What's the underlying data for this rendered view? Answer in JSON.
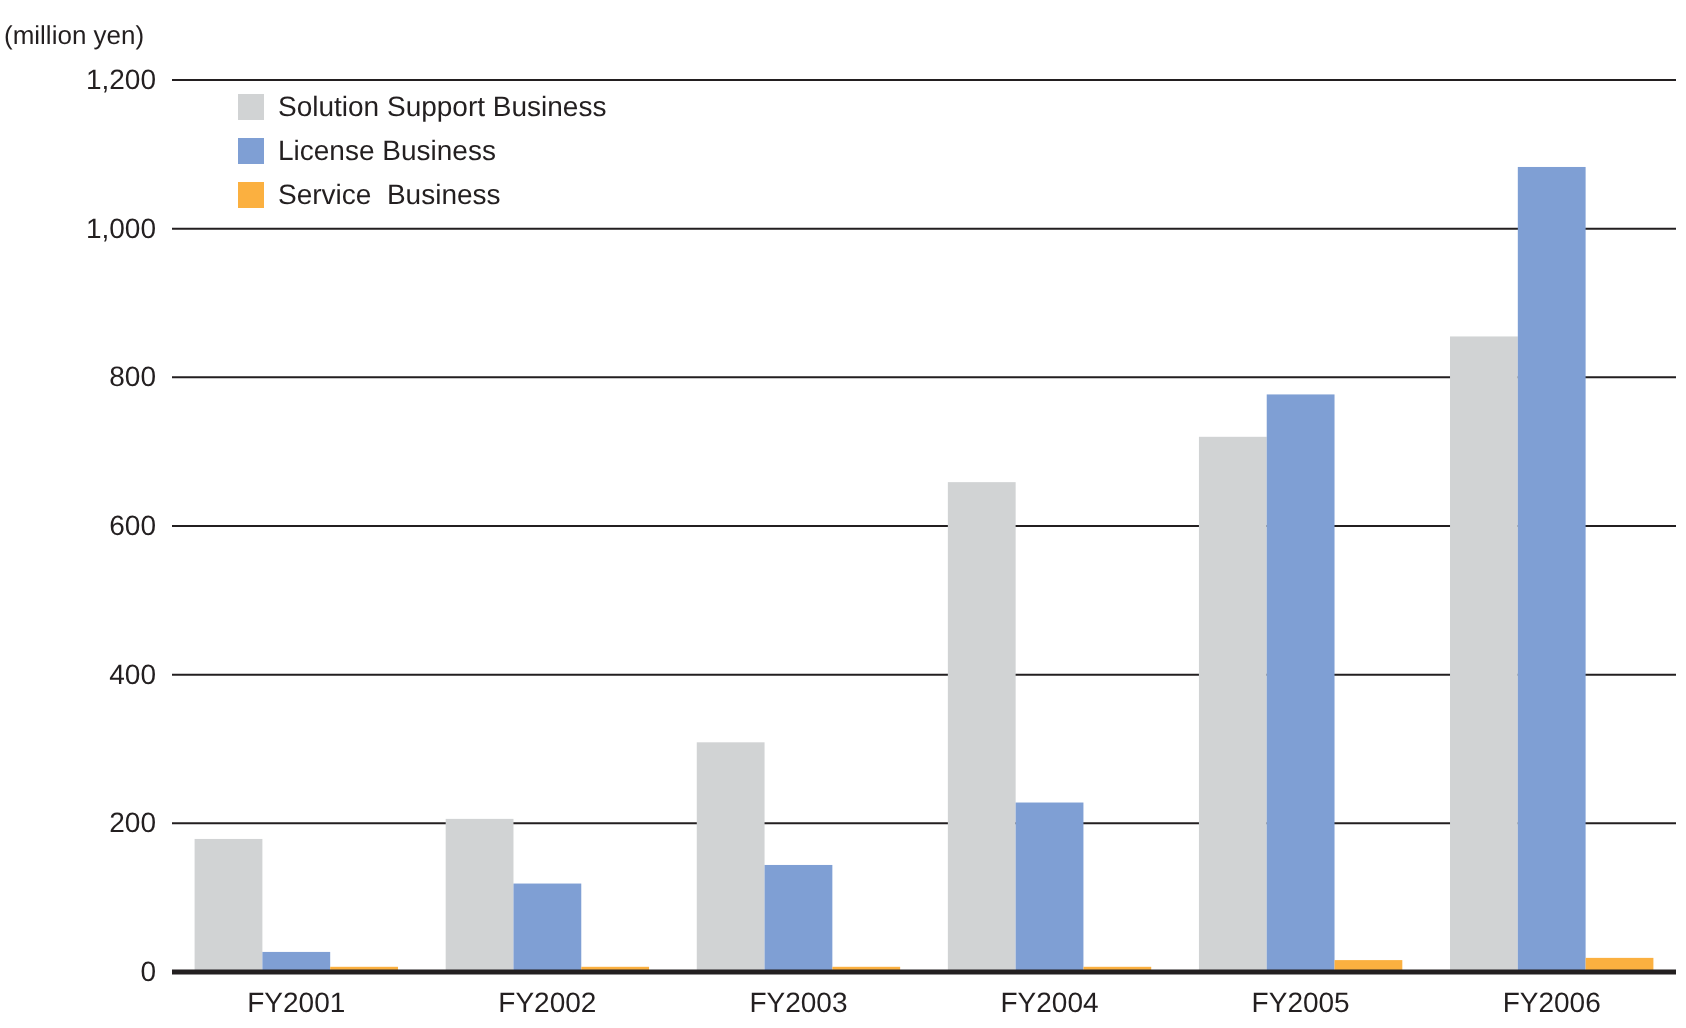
{
  "chart_data": {
    "type": "bar",
    "ylabel": "(million yen)",
    "categories": [
      "FY2001",
      "FY2002",
      "FY2003",
      "FY2004",
      "FY2005",
      "FY2006"
    ],
    "series": [
      {
        "name": "Solution Support Business",
        "color": "#d1d3d4",
        "values": [
          179,
          206,
          309,
          659,
          720,
          855
        ]
      },
      {
        "name": "License Business",
        "color": "#7f9fd4",
        "values": [
          27,
          119,
          144,
          228,
          777,
          1083
        ]
      },
      {
        "name": "Service  Business",
        "color": "#fbb040",
        "values": [
          7,
          7,
          7,
          7,
          16,
          19
        ]
      }
    ],
    "ylim": [
      0,
      1200
    ],
    "yticks": [
      0,
      {
        "value": 200,
        "label": "200"
      },
      {
        "value": 400,
        "label": "400"
      },
      {
        "value": 600,
        "label": "600"
      },
      {
        "value": 800,
        "label": "800"
      },
      {
        "value": 1000,
        "label": "1,000"
      },
      {
        "value": 1200,
        "label": "1,200"
      }
    ],
    "grid": "y",
    "legend": "top left"
  }
}
